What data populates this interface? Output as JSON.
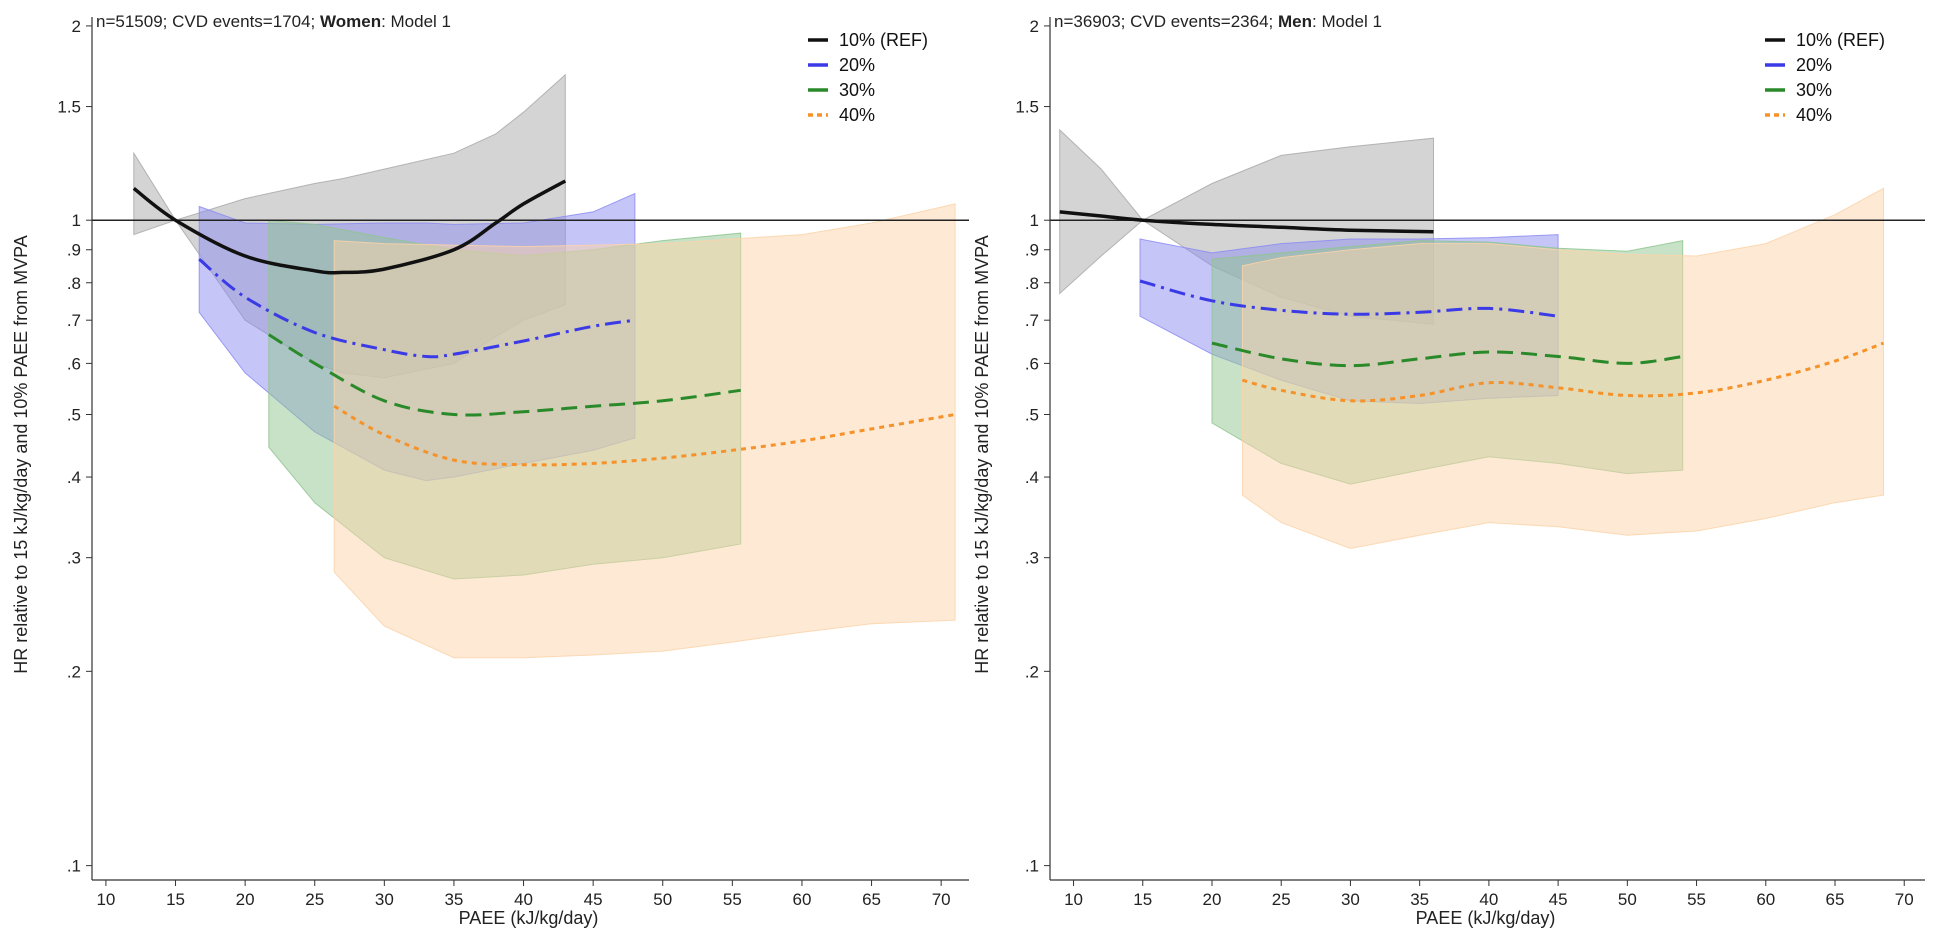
{
  "chart_data": [
    {
      "type": "line",
      "note_prefix": "n=51509; CVD events=1704; ",
      "note_bold": "Women",
      "note_suffix": ": Model 1",
      "xlabel": "PAEE (kJ/kg/day)",
      "ylabel": "HR relative to 15 kJ/kg/day and 10% PAEE from MVPA",
      "y_scale": "log",
      "xlim": [
        9,
        72
      ],
      "ylim": [
        0.095,
        2.05
      ],
      "x_ticks": [
        10,
        15,
        20,
        25,
        30,
        35,
        40,
        45,
        50,
        55,
        60,
        65,
        70
      ],
      "x_tick_labels": [
        "10",
        "15",
        "20",
        "25",
        "30",
        "35",
        "40",
        "45",
        "50",
        "55",
        "60",
        "65",
        "70"
      ],
      "y_ticks": [
        0.1,
        0.2,
        0.3,
        0.4,
        0.5,
        0.6,
        0.7,
        0.8,
        0.9,
        1,
        1.5,
        2
      ],
      "y_tick_labels": [
        ".1",
        ".2",
        ".3",
        ".4",
        ".5",
        ".6",
        ".7",
        ".8",
        ".9",
        "1",
        "1.5",
        "2"
      ],
      "reference_line": 1,
      "legend_position": "top-right",
      "series": [
        {
          "name": "10% (REF)",
          "color": "#111111",
          "fill": "#a9a9a9",
          "dash": "solid",
          "x": [
            12,
            15,
            20,
            25,
            27,
            30,
            35,
            38,
            40,
            43
          ],
          "y": [
            1.12,
            1.0,
            0.88,
            0.835,
            0.83,
            0.84,
            0.9,
            0.99,
            1.06,
            1.15
          ],
          "lo": [
            0.95,
            1.0,
            0.7,
            0.6,
            0.58,
            0.57,
            0.6,
            0.66,
            0.7,
            0.74
          ],
          "hi": [
            1.27,
            1.0,
            1.08,
            1.14,
            1.16,
            1.2,
            1.27,
            1.36,
            1.47,
            1.68
          ]
        },
        {
          "name": "20%",
          "color": "#3a3ae6",
          "fill": "#8c8cf2",
          "dash": "dashdot",
          "x": [
            16.7,
            20,
            25,
            30,
            33,
            35,
            40,
            45,
            48
          ],
          "y": [
            0.87,
            0.76,
            0.67,
            0.63,
            0.615,
            0.62,
            0.65,
            0.685,
            0.7
          ],
          "lo": [
            0.72,
            0.58,
            0.47,
            0.41,
            0.395,
            0.4,
            0.42,
            0.44,
            0.46
          ],
          "hi": [
            1.05,
            0.99,
            0.985,
            0.99,
            0.99,
            0.985,
            0.99,
            1.03,
            1.1
          ]
        },
        {
          "name": "30%",
          "color": "#2a8a2a",
          "fill": "#8fc58f",
          "dash": "dashed",
          "x": [
            21.7,
            25,
            30,
            35,
            40,
            45,
            50,
            55.6
          ],
          "y": [
            0.665,
            0.6,
            0.525,
            0.5,
            0.505,
            0.515,
            0.525,
            0.545
          ],
          "lo": [
            0.445,
            0.365,
            0.3,
            0.278,
            0.282,
            0.293,
            0.3,
            0.315
          ],
          "hi": [
            1.0,
            0.985,
            0.94,
            0.9,
            0.88,
            0.9,
            0.93,
            0.955
          ]
        },
        {
          "name": "40%",
          "color": "#f5922a",
          "fill": "#fbd3a9",
          "dash": "dotted",
          "x": [
            26.4,
            30,
            35,
            40,
            45,
            50,
            55,
            60,
            65,
            71
          ],
          "y": [
            0.515,
            0.465,
            0.425,
            0.418,
            0.42,
            0.428,
            0.44,
            0.455,
            0.475,
            0.5
          ],
          "lo": [
            0.285,
            0.235,
            0.21,
            0.21,
            0.212,
            0.215,
            0.222,
            0.23,
            0.237,
            0.24
          ],
          "hi": [
            0.93,
            0.92,
            0.915,
            0.91,
            0.915,
            0.92,
            0.935,
            0.95,
            0.99,
            1.06
          ]
        }
      ]
    },
    {
      "type": "line",
      "note_prefix": "n=36903; CVD events=2364; ",
      "note_bold": "Men",
      "note_suffix": ": Model 1",
      "xlabel": "PAEE (kJ/kg/day)",
      "ylabel": "HR relative to 15 kJ/kg/day and 10% PAEE from MVPA",
      "y_scale": "log",
      "xlim": [
        8.3,
        71.5
      ],
      "ylim": [
        0.095,
        2.05
      ],
      "x_ticks": [
        10,
        15,
        20,
        25,
        30,
        35,
        40,
        45,
        50,
        55,
        60,
        65,
        70
      ],
      "x_tick_labels": [
        "10",
        "15",
        "20",
        "25",
        "30",
        "35",
        "40",
        "45",
        "50",
        "55",
        "60",
        "65",
        "70"
      ],
      "y_ticks": [
        0.1,
        0.2,
        0.3,
        0.4,
        0.5,
        0.6,
        0.7,
        0.8,
        0.9,
        1,
        1.5,
        2
      ],
      "y_tick_labels": [
        ".1",
        ".2",
        ".3",
        ".4",
        ".5",
        ".6",
        ".7",
        ".8",
        ".9",
        "1",
        "1.5",
        "2"
      ],
      "reference_line": 1,
      "legend_position": "top-right",
      "series": [
        {
          "name": "10% (REF)",
          "color": "#111111",
          "fill": "#a9a9a9",
          "dash": "solid",
          "x": [
            9,
            12,
            15,
            20,
            25,
            30,
            36
          ],
          "y": [
            1.03,
            1.015,
            1.0,
            0.985,
            0.975,
            0.965,
            0.96
          ],
          "lo": [
            0.77,
            0.88,
            1.0,
            0.85,
            0.76,
            0.71,
            0.69
          ],
          "hi": [
            1.38,
            1.2,
            1.0,
            1.14,
            1.26,
            1.3,
            1.34
          ]
        },
        {
          "name": "20%",
          "color": "#3a3ae6",
          "fill": "#8c8cf2",
          "dash": "dashdot",
          "x": [
            14.8,
            20,
            25,
            30,
            35,
            40,
            45
          ],
          "y": [
            0.805,
            0.75,
            0.725,
            0.715,
            0.72,
            0.73,
            0.71
          ],
          "lo": [
            0.71,
            0.62,
            0.565,
            0.525,
            0.52,
            0.53,
            0.535
          ],
          "hi": [
            0.935,
            0.89,
            0.92,
            0.935,
            0.935,
            0.94,
            0.95
          ]
        },
        {
          "name": "30%",
          "color": "#2a8a2a",
          "fill": "#8fc58f",
          "dash": "dashed",
          "x": [
            20,
            25,
            30,
            35,
            40,
            45,
            50,
            54
          ],
          "y": [
            0.645,
            0.61,
            0.595,
            0.61,
            0.625,
            0.615,
            0.6,
            0.615
          ],
          "lo": [
            0.485,
            0.42,
            0.39,
            0.41,
            0.43,
            0.42,
            0.405,
            0.41
          ],
          "hi": [
            0.87,
            0.89,
            0.91,
            0.93,
            0.925,
            0.905,
            0.895,
            0.93
          ]
        },
        {
          "name": "40%",
          "color": "#f5922a",
          "fill": "#fbd3a9",
          "dash": "dotted",
          "x": [
            22.2,
            25,
            30,
            35,
            40,
            45,
            50,
            55,
            60,
            65,
            68.5
          ],
          "y": [
            0.565,
            0.545,
            0.525,
            0.535,
            0.56,
            0.55,
            0.535,
            0.54,
            0.565,
            0.605,
            0.645
          ],
          "lo": [
            0.375,
            0.34,
            0.31,
            0.325,
            0.34,
            0.335,
            0.325,
            0.33,
            0.345,
            0.365,
            0.375
          ],
          "hi": [
            0.85,
            0.875,
            0.9,
            0.92,
            0.92,
            0.9,
            0.885,
            0.88,
            0.92,
            1.02,
            1.12
          ]
        }
      ]
    }
  ]
}
